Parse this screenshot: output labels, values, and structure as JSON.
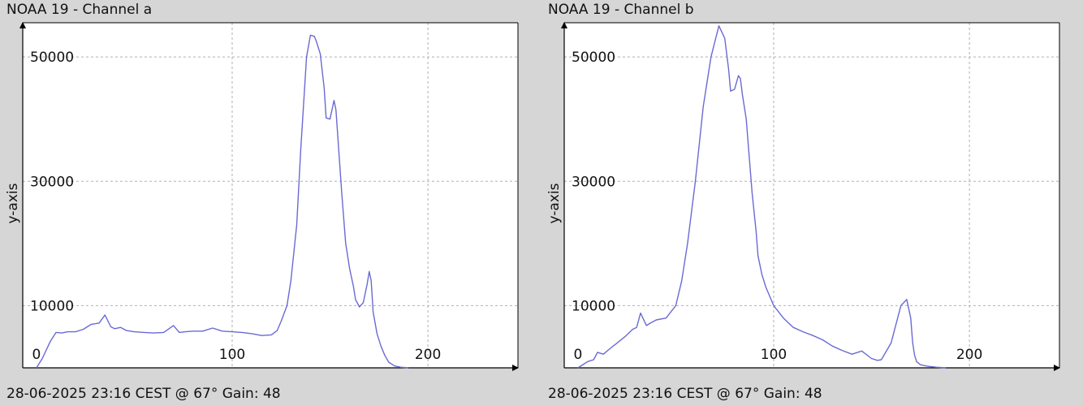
{
  "panels": [
    {
      "title": "NOAA 19 - Channel a",
      "footer": "28-06-2025 23:16 CEST @ 67° Gain: 48"
    },
    {
      "title": "NOAA 19 - Channel b",
      "footer": "28-06-2025 23:16 CEST @ 67° Gain: 48"
    }
  ],
  "chart_data": [
    {
      "type": "line",
      "title": "NOAA 19 - Channel a",
      "xlabel": "",
      "ylabel": "y-axis",
      "xlim": [
        -7,
        246
      ],
      "ylim": [
        0,
        55500
      ],
      "x_ticks": [
        0,
        100,
        200
      ],
      "y_ticks": [
        10000,
        30000,
        50000
      ],
      "grid": true,
      "line_color": "#6a6ad4",
      "series": [
        {
          "x": [
            0,
            3,
            7,
            10,
            13,
            16,
            20,
            24,
            28,
            32,
            35,
            38,
            40,
            43,
            46,
            50,
            55,
            60,
            65,
            70,
            73,
            76,
            80,
            85,
            90,
            95,
            100,
            105,
            110,
            115,
            120,
            123,
            125,
            128,
            130,
            133,
            135,
            138,
            140,
            142,
            143,
            145,
            147,
            148,
            150,
            152,
            153,
            154,
            156,
            158,
            160,
            162,
            163,
            165,
            167,
            169,
            170,
            171,
            172,
            174,
            176,
            178,
            180,
            183,
            186,
            190
          ],
          "y": [
            0,
            1500,
            4200,
            5700,
            5600,
            5800,
            5800,
            6200,
            7000,
            7200,
            8500,
            6600,
            6300,
            6500,
            6000,
            5800,
            5700,
            5600,
            5700,
            6800,
            5700,
            5800,
            5900,
            5900,
            6400,
            5900,
            5800,
            5700,
            5500,
            5200,
            5300,
            6000,
            7500,
            10000,
            14000,
            23000,
            35000,
            50000,
            53500,
            53300,
            52500,
            50500,
            45000,
            40200,
            40000,
            43000,
            41500,
            37000,
            28000,
            20000,
            16000,
            13000,
            11000,
            9800,
            10500,
            13500,
            15500,
            14000,
            9000,
            5500,
            3500,
            2000,
            900,
            300,
            100,
            0
          ]
        }
      ]
    },
    {
      "type": "line",
      "title": "NOAA 19 - Channel b",
      "xlabel": "",
      "ylabel": "y-axis",
      "xlim": [
        -7,
        246
      ],
      "ylim": [
        0,
        55500
      ],
      "x_ticks": [
        0,
        100,
        200
      ],
      "y_ticks": [
        10000,
        30000,
        50000
      ],
      "grid": true,
      "line_color": "#6a6ad4",
      "series": [
        {
          "x": [
            0,
            3,
            5,
            8,
            10,
            13,
            16,
            20,
            24,
            28,
            30,
            32,
            35,
            37,
            40,
            45,
            50,
            53,
            56,
            60,
            64,
            68,
            72,
            75,
            77,
            78,
            80,
            82,
            83,
            84,
            85,
            86,
            87,
            89,
            91,
            92,
            94,
            96,
            100,
            105,
            110,
            115,
            120,
            125,
            130,
            135,
            140,
            145,
            150,
            153,
            155,
            160,
            165,
            168,
            170,
            171,
            172,
            173,
            175,
            178,
            180,
            183,
            188
          ],
          "y": [
            0,
            600,
            1000,
            1300,
            2500,
            2200,
            3000,
            4000,
            5000,
            6200,
            6500,
            8800,
            6800,
            7200,
            7700,
            8000,
            10000,
            14000,
            20000,
            30000,
            42000,
            50000,
            55000,
            53000,
            48000,
            44500,
            44800,
            47000,
            46500,
            44000,
            42000,
            40000,
            36000,
            28000,
            22000,
            18000,
            15000,
            13000,
            10000,
            8000,
            6500,
            5800,
            5200,
            4500,
            3500,
            2800,
            2200,
            2700,
            1500,
            1200,
            1300,
            4000,
            10000,
            11000,
            8000,
            4000,
            2000,
            1000,
            500,
            300,
            200,
            100,
            0
          ]
        }
      ]
    }
  ]
}
